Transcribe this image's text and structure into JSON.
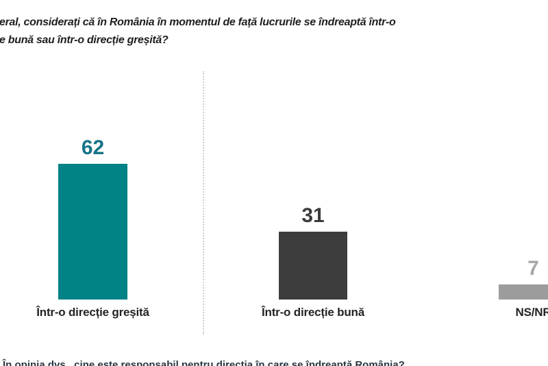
{
  "title": {
    "line1": "eral, considerați că în România în momentul de față lucrurile se îndreaptă într-o",
    "line2": "e bună sau într-o direcție greșită?"
  },
  "chart_data": {
    "type": "bar",
    "title": "eral, considerați că în România în momentul de față lucrurile se îndreaptă într-o e bună sau într-o direcție greșită? (question text clipped at left edge of screenshot)",
    "categories": [
      "Într-o direcție greșită",
      "Într-o direcție bună",
      "NS/NR"
    ],
    "values": [
      62,
      31,
      7
    ],
    "xlabel": "",
    "ylabel": "",
    "ylim": [
      0,
      70
    ],
    "grid": false,
    "legend": "none",
    "value_labels_shown": true,
    "bar_colors": [
      "#008286",
      "#3d3d3d",
      "#9c9c9c"
    ],
    "value_label_colors": [
      "#147387",
      "#3b3b3b",
      "#a6a6a6"
    ],
    "notes": "third bar and its NS/NR label are clipped at the right edge of the image"
  },
  "divider": {
    "style": "vertical dotted line between first and second bar",
    "color": "#d0d0d0"
  },
  "footer": {
    "clipped_text": "În opinia dvs., cine este responsabil pentru direcția în care se îndreaptă România?"
  }
}
